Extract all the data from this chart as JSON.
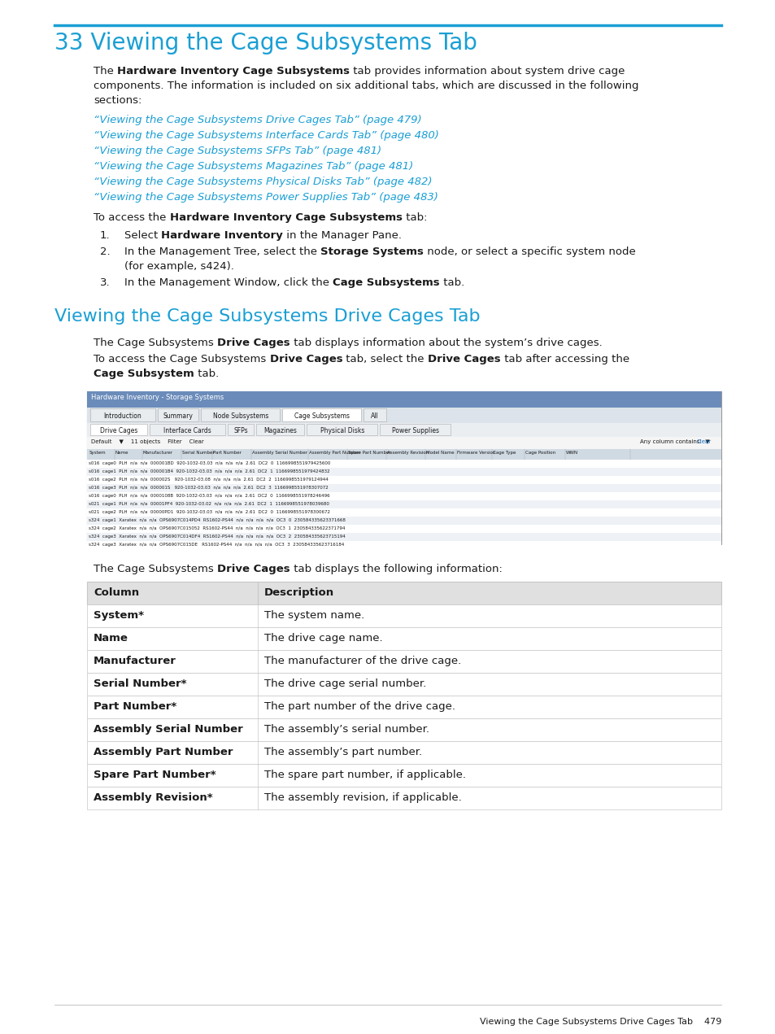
{
  "page_bg": "#ffffff",
  "cyan_color": "#1a9fd4",
  "black_color": "#1a1a1a",
  "gray_line_color": "#cccccc",
  "table_border_color": "#c8c8c8",
  "chapter_title": "33 Viewing the Cage Subsystems Tab",
  "section_title": "Viewing the Cage Subsystems Drive Cages Tab",
  "links": [
    "“Viewing the Cage Subsystems Drive Cages Tab” (page 479)",
    "“Viewing the Cage Subsystems Interface Cards Tab” (page 480)",
    "“Viewing the Cage Subsystems SFPs Tab” (page 481)",
    "“Viewing the Cage Subsystems Magazines Tab” (page 481)",
    "“Viewing the Cage Subsystems Physical Disks Tab” (page 482)",
    "“Viewing the Cage Subsystems Power Supplies Tab” (page 483)"
  ],
  "table_columns": [
    "Column",
    "Description"
  ],
  "table_rows": [
    [
      "System*",
      "The system name."
    ],
    [
      "Name",
      "The drive cage name."
    ],
    [
      "Manufacturer",
      "The manufacturer of the drive cage."
    ],
    [
      "Serial Number*",
      "The drive cage serial number."
    ],
    [
      "Part Number*",
      "The part number of the drive cage."
    ],
    [
      "Assembly Serial Number",
      "The assembly’s serial number."
    ],
    [
      "Assembly Part Number",
      "The assembly’s part number."
    ],
    [
      "Spare Part Number*",
      "The spare part number, if applicable."
    ],
    [
      "Assembly Revision*",
      "The assembly revision, if applicable."
    ]
  ],
  "footer_text": "Viewing the Cage Subsystems Drive Cages Tab    479"
}
